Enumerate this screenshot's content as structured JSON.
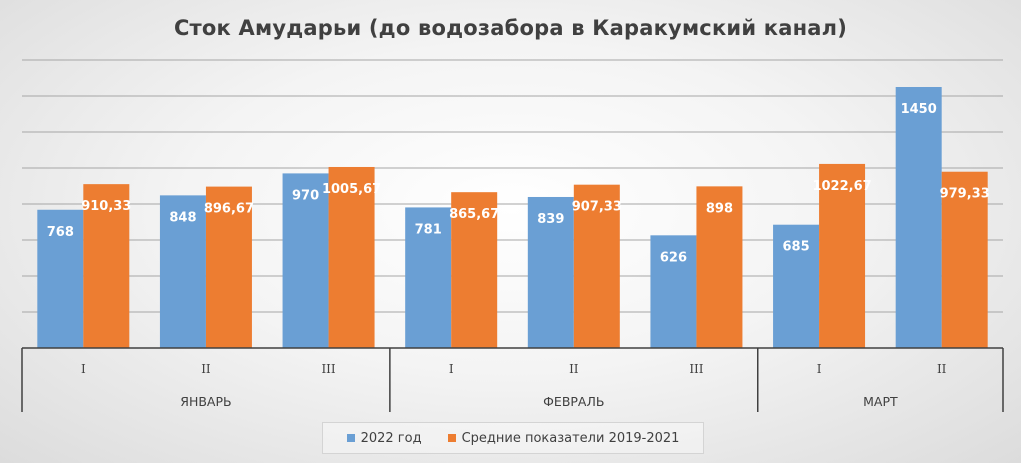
{
  "chart_data": {
    "type": "bar",
    "title": "Сток Амударьи (до водозабора в Каракумский канал)",
    "categories": [
      "I",
      "II",
      "III",
      "I",
      "II",
      "III",
      "I",
      "II"
    ],
    "groups": [
      {
        "label": "ЯНВАРЬ",
        "categories": [
          "I",
          "II",
          "III"
        ]
      },
      {
        "label": "ФЕВРАЛЬ",
        "categories": [
          "I",
          "II",
          "III"
        ]
      },
      {
        "label": "МАРТ",
        "categories": [
          "I",
          "II"
        ]
      }
    ],
    "series": [
      {
        "name": "2022 год",
        "color": "#6a9fd4",
        "values": [
          768,
          848,
          970,
          781,
          839,
          626,
          685,
          1450
        ],
        "labels": [
          "768",
          "848",
          "970",
          "781",
          "839",
          "626",
          "685",
          "1450"
        ]
      },
      {
        "name": "Средние показатели 2019-2021",
        "color": "#ed7d31",
        "values": [
          910.33,
          896.67,
          1005.67,
          865.67,
          907.33,
          898,
          1022.67,
          979.33
        ],
        "labels": [
          "910,33",
          "896,67",
          "1005,67",
          "865,67",
          "907,33",
          "898",
          "1022,67",
          "979,33"
        ]
      }
    ],
    "ylim": [
      0,
      1600
    ],
    "ytick_step": 200,
    "y_tick_labels_shown": false,
    "grid": true,
    "legend_position": "bottom"
  }
}
